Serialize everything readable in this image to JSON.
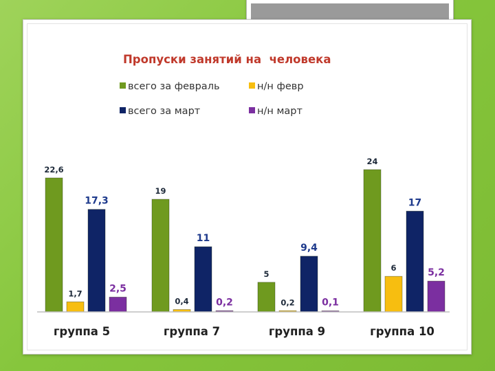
{
  "chart_data": {
    "type": "bar",
    "title": "Пропуски занятий на  человека",
    "categories": [
      "группа 5",
      "группа 7",
      "группа 9",
      "группа 10"
    ],
    "series": [
      {
        "name": "всего за февраль",
        "color": "#6f9a1f",
        "values": [
          22.6,
          19,
          5,
          24
        ],
        "labels": [
          "22,6",
          "19",
          "5",
          "24"
        ],
        "label_color": "#1e2a3a"
      },
      {
        "name": "н/н февр",
        "color": "#f7be10",
        "values": [
          1.7,
          0.4,
          0.2,
          6
        ],
        "labels": [
          "1,7",
          "0,4",
          "0,2",
          "6"
        ],
        "label_color": "#1e2a3a"
      },
      {
        "name": "всего за март",
        "color": "#0f2466",
        "values": [
          17.3,
          11,
          9.4,
          17
        ],
        "labels": [
          "17,3",
          "11",
          "9,4",
          "17"
        ],
        "label_color": "#1e3a8c"
      },
      {
        "name": "н/н март",
        "color": "#7b2fa0",
        "values": [
          2.5,
          0.2,
          0.1,
          5.2
        ],
        "labels": [
          "2,5",
          "0,2",
          "0,1",
          "5,2"
        ],
        "label_color": "#7b2fa0"
      }
    ],
    "ylim": [
      0,
      27
    ],
    "grid": false,
    "legend_position": "top"
  }
}
